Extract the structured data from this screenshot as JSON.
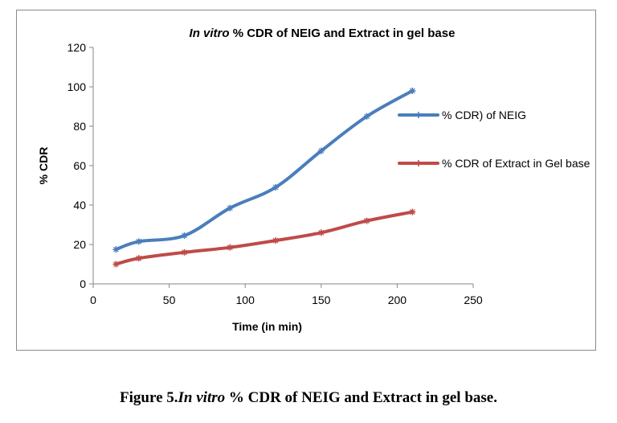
{
  "chart_data": {
    "type": "line",
    "title_italic": "In vitro",
    "title_rest": " % CDR of NEIG and Extract in gel base",
    "xlabel": "Time (in min)",
    "ylabel": "% CDR",
    "xlim": [
      0,
      250
    ],
    "ylim": [
      0,
      120
    ],
    "x_ticks": [
      0,
      50,
      100,
      150,
      200,
      250
    ],
    "y_ticks": [
      0,
      20,
      40,
      60,
      80,
      100,
      120
    ],
    "grid": false,
    "legend_position": "right",
    "x": [
      15,
      30,
      60,
      90,
      120,
      150,
      180,
      210
    ],
    "series": [
      {
        "name": "% CDR) of NEIG",
        "color": "#4a7ebb",
        "values": [
          17.5,
          21.5,
          24.5,
          38.5,
          49,
          67.5,
          85,
          98
        ]
      },
      {
        "name": "% CDR of Extract in Gel base",
        "color": "#be4b48",
        "values": [
          10,
          13,
          16,
          18.5,
          22,
          26,
          32,
          36.5
        ]
      }
    ]
  },
  "caption": {
    "prefix": "Figure  5.",
    "italic": "In vitro",
    "rest": " % CDR of NEIG and Extract in gel base."
  }
}
